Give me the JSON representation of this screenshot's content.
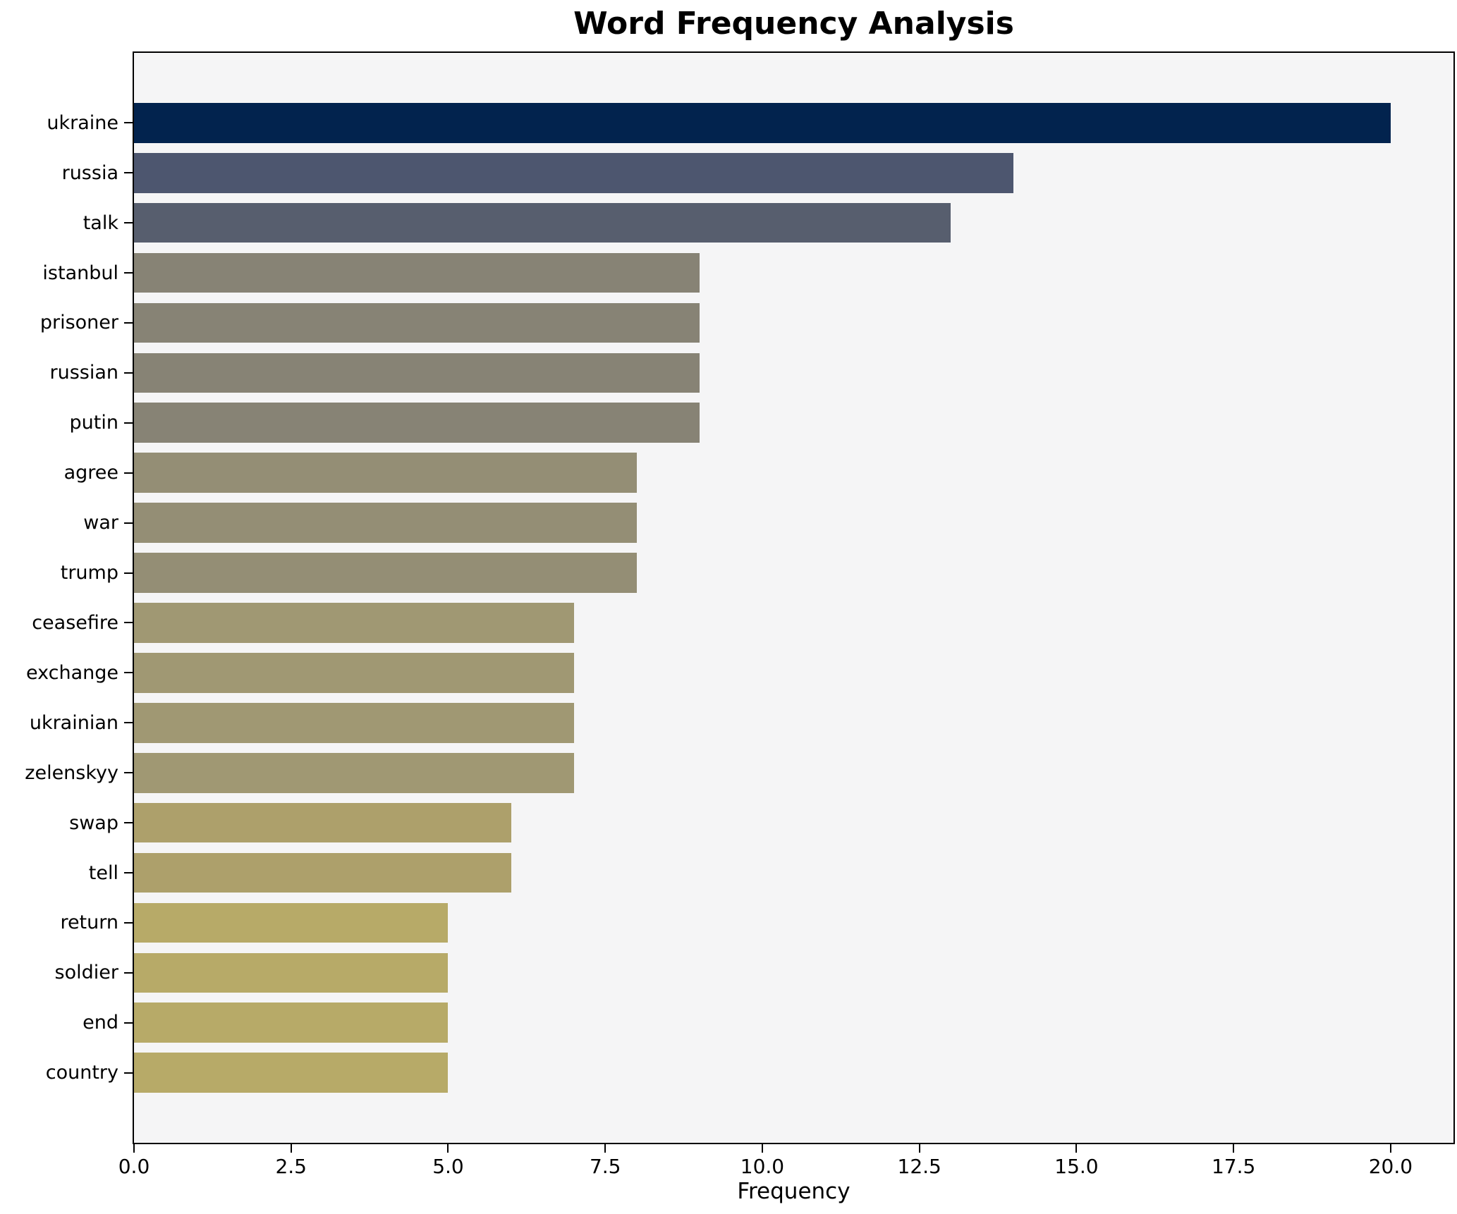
{
  "title": "Word Frequency Analysis",
  "xlabel": "Frequency",
  "chart_data": {
    "type": "bar",
    "orientation": "horizontal",
    "title": "Word Frequency Analysis",
    "xlabel": "Frequency",
    "ylabel": "",
    "grid": false,
    "legend": false,
    "plot_background": "#f5f5f6",
    "spine_color": "#000000",
    "xlim": [
      0,
      21
    ],
    "x_ticks": [
      0.0,
      2.5,
      5.0,
      7.5,
      10.0,
      12.5,
      15.0,
      17.5,
      20.0
    ],
    "x_tick_labels": [
      "0.0",
      "2.5",
      "5.0",
      "7.5",
      "10.0",
      "12.5",
      "15.0",
      "17.5",
      "20.0"
    ],
    "categories": [
      "ukraine",
      "russia",
      "talk",
      "istanbul",
      "prisoner",
      "russian",
      "putin",
      "agree",
      "war",
      "trump",
      "ceasefire",
      "exchange",
      "ukrainian",
      "zelenskyy",
      "swap",
      "tell",
      "return",
      "soldier",
      "end",
      "country"
    ],
    "values": [
      20,
      14,
      13,
      9,
      9,
      9,
      9,
      8,
      8,
      8,
      7,
      7,
      7,
      7,
      6,
      6,
      5,
      5,
      5,
      5
    ],
    "bar_colors": [
      "#02234e",
      "#4d566f",
      "#575e6e",
      "#878375",
      "#878375",
      "#878375",
      "#878375",
      "#948e75",
      "#948e75",
      "#948e75",
      "#a09873",
      "#a09873",
      "#a09873",
      "#a09873",
      "#ada06b",
      "#ada06b",
      "#b7aa68",
      "#b7aa68",
      "#b7aa68",
      "#b7aa68"
    ]
  }
}
